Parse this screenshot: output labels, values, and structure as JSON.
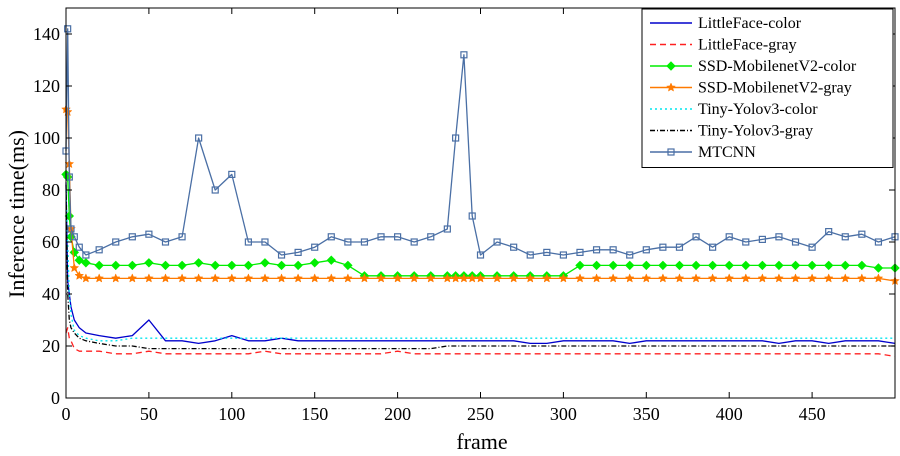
{
  "chart_data": {
    "type": "line",
    "title": "",
    "xlabel": "frame",
    "ylabel": "Inference time(ms)",
    "xlim": [
      0,
      500
    ],
    "ylim": [
      0,
      150
    ],
    "grid": false,
    "legend_position": "top-right",
    "x_ticks": [
      "0",
      "50",
      "100",
      "150",
      "200",
      "250",
      "300",
      "350",
      "400",
      "450"
    ],
    "y_ticks": [
      "0",
      "20",
      "40",
      "60",
      "80",
      "100",
      "120",
      "140"
    ],
    "x": [
      0,
      1,
      2,
      3,
      5,
      8,
      12,
      20,
      30,
      40,
      50,
      60,
      70,
      80,
      90,
      100,
      110,
      120,
      130,
      140,
      150,
      160,
      170,
      180,
      190,
      200,
      210,
      220,
      230,
      235,
      240,
      245,
      250,
      260,
      270,
      280,
      290,
      300,
      310,
      320,
      330,
      340,
      350,
      360,
      370,
      380,
      390,
      400,
      410,
      420,
      430,
      440,
      450,
      460,
      470,
      480,
      490,
      500
    ],
    "series": [
      {
        "name": "LittleFace-color",
        "color": "#0000cc",
        "dash": "",
        "marker": "none",
        "values": [
          83,
          45,
          40,
          35,
          30,
          27,
          25,
          24,
          23,
          24,
          30,
          22,
          22,
          21,
          22,
          24,
          22,
          22,
          23,
          22,
          22,
          22,
          22,
          22,
          22,
          22,
          22,
          22,
          22,
          22,
          22,
          22,
          22,
          22,
          22,
          21,
          21,
          22,
          22,
          22,
          22,
          21,
          22,
          22,
          22,
          22,
          22,
          22,
          22,
          22,
          21,
          22,
          22,
          21,
          22,
          22,
          22,
          21
        ]
      },
      {
        "name": "LittleFace-gray",
        "color": "#ff2020",
        "dash": "6,4",
        "marker": "none",
        "values": [
          25,
          27,
          23,
          22,
          19,
          18,
          18,
          18,
          17,
          17,
          18,
          17,
          17,
          17,
          17,
          17,
          17,
          18,
          17,
          17,
          17,
          17,
          17,
          17,
          17,
          18,
          17,
          17,
          17,
          17,
          17,
          17,
          17,
          17,
          17,
          17,
          17,
          17,
          17,
          17,
          17,
          17,
          17,
          17,
          17,
          17,
          17,
          17,
          17,
          17,
          17,
          17,
          17,
          17,
          17,
          17,
          17,
          16
        ]
      },
      {
        "name": "SSD-MobilenetV2-color",
        "color": "#00ee00",
        "dash": "",
        "marker": "diamond",
        "values": [
          86,
          85,
          70,
          62,
          56,
          53,
          52,
          51,
          51,
          51,
          52,
          51,
          51,
          52,
          51,
          51,
          51,
          52,
          51,
          51,
          52,
          53,
          51,
          47,
          47,
          47,
          47,
          47,
          47,
          47,
          47,
          47,
          47,
          47,
          47,
          47,
          47,
          47,
          51,
          51,
          51,
          51,
          51,
          51,
          51,
          51,
          51,
          51,
          51,
          51,
          51,
          51,
          51,
          51,
          51,
          51,
          50,
          50
        ]
      },
      {
        "name": "SSD-MobilenetV2-gray",
        "color": "#ff7a00",
        "dash": "",
        "marker": "star",
        "values": [
          111,
          110,
          90,
          65,
          50,
          47,
          46,
          46,
          46,
          46,
          46,
          46,
          46,
          46,
          46,
          46,
          46,
          46,
          46,
          46,
          46,
          46,
          46,
          46,
          46,
          46,
          46,
          46,
          46,
          46,
          46,
          46,
          46,
          46,
          46,
          46,
          46,
          46,
          46,
          46,
          46,
          46,
          46,
          46,
          46,
          46,
          46,
          46,
          46,
          46,
          46,
          46,
          46,
          46,
          46,
          46,
          46,
          45
        ]
      },
      {
        "name": "Tiny-Yolov3-color",
        "color": "#00e5ee",
        "dash": "2,3",
        "marker": "none",
        "values": [
          80,
          60,
          40,
          32,
          26,
          24,
          23,
          22,
          22,
          23,
          23,
          23,
          23,
          23,
          23,
          23,
          23,
          23,
          23,
          23,
          23,
          23,
          23,
          23,
          23,
          23,
          23,
          23,
          23,
          23,
          23,
          23,
          23,
          23,
          23,
          23,
          23,
          23,
          23,
          23,
          23,
          23,
          23,
          23,
          23,
          23,
          23,
          23,
          23,
          23,
          23,
          23,
          23,
          23,
          23,
          23,
          23,
          23
        ]
      },
      {
        "name": "Tiny-Yolov3-gray",
        "color": "#000000",
        "dash": "5,2,1,2",
        "marker": "none",
        "values": [
          82,
          40,
          30,
          27,
          25,
          23,
          22,
          21,
          20,
          20,
          19,
          19,
          19,
          19,
          19,
          19,
          19,
          19,
          19,
          19,
          19,
          19,
          19,
          19,
          19,
          19,
          19,
          19,
          20,
          20,
          20,
          20,
          20,
          20,
          20,
          20,
          20,
          20,
          20,
          20,
          20,
          20,
          20,
          20,
          20,
          20,
          20,
          20,
          20,
          20,
          20,
          20,
          20,
          20,
          20,
          20,
          20,
          20
        ]
      },
      {
        "name": "MTCNN",
        "color": "#4a6fa5",
        "dash": "",
        "marker": "square",
        "values": [
          95,
          142,
          85,
          65,
          62,
          58,
          55,
          57,
          60,
          62,
          63,
          60,
          62,
          100,
          80,
          86,
          60,
          60,
          55,
          56,
          58,
          62,
          60,
          60,
          62,
          62,
          60,
          62,
          65,
          100,
          132,
          70,
          55,
          60,
          58,
          55,
          56,
          55,
          56,
          57,
          57,
          55,
          57,
          58,
          58,
          62,
          58,
          62,
          60,
          61,
          62,
          60,
          58,
          64,
          62,
          63,
          60,
          62
        ]
      }
    ]
  }
}
